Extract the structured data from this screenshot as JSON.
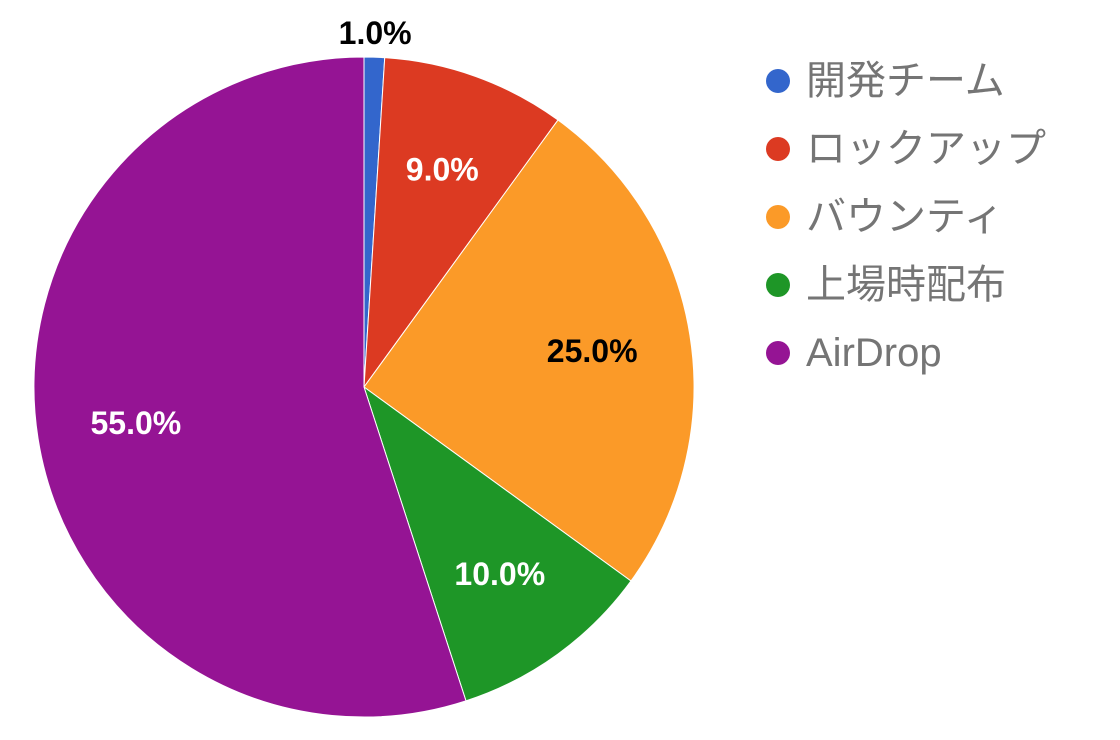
{
  "chart_data": {
    "type": "pie",
    "title": "",
    "categories": [
      "開発チーム",
      "ロックアップ",
      "バウンティ",
      "上場時配布",
      "AirDrop"
    ],
    "values": [
      1.0,
      9.0,
      25.0,
      10.0,
      55.0
    ],
    "labels": [
      "1.0%",
      "9.0%",
      "25.0%",
      "10.0%",
      "55.0%"
    ],
    "colors": [
      "#3366cc",
      "#dc3a22",
      "#fb9a28",
      "#1e9627",
      "#951494"
    ],
    "label_colors": [
      "#000000",
      "#ffffff",
      "#000000",
      "#ffffff",
      "#ffffff"
    ],
    "start_angle": "top, clockwise",
    "legend_position": "right"
  }
}
